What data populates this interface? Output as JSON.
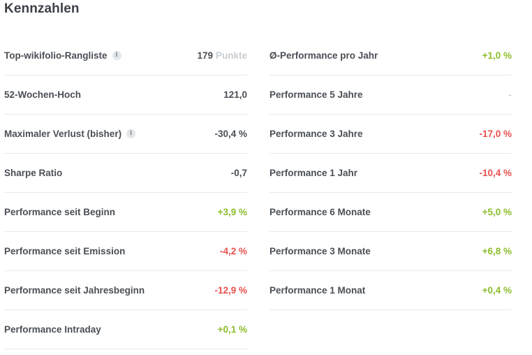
{
  "title": "Kennzahlen",
  "left": [
    {
      "label": "Top-wikifolio-Rangliste",
      "info": true,
      "value": "179",
      "unit": "Punkte",
      "tone": "neutral"
    },
    {
      "label": "52-Wochen-Hoch",
      "info": false,
      "value": "121,0",
      "tone": "neutral"
    },
    {
      "label": "Maximaler Verlust (bisher)",
      "info": true,
      "value": "-30,4 %",
      "tone": "neutral"
    },
    {
      "label": "Sharpe Ratio",
      "info": false,
      "value": "-0,7",
      "tone": "neutral"
    },
    {
      "label": "Performance seit Beginn",
      "info": false,
      "value": "+3,9 %",
      "tone": "pos"
    },
    {
      "label": "Performance seit Emission",
      "info": false,
      "value": "-4,2 %",
      "tone": "neg"
    },
    {
      "label": "Performance seit Jahresbeginn",
      "info": false,
      "value": "-12,9 %",
      "tone": "neg"
    },
    {
      "label": "Performance Intraday",
      "info": false,
      "value": "+0,1 %",
      "tone": "pos"
    }
  ],
  "right": [
    {
      "label": "Ø-Performance pro Jahr",
      "info": false,
      "value": "+1,0 %",
      "tone": "pos"
    },
    {
      "label": "Performance 5 Jahre",
      "info": false,
      "value": "-",
      "tone": "dash"
    },
    {
      "label": "Performance 3 Jahre",
      "info": false,
      "value": "-17,0 %",
      "tone": "neg"
    },
    {
      "label": "Performance 1 Jahr",
      "info": false,
      "value": "-10,4 %",
      "tone": "neg"
    },
    {
      "label": "Performance 6 Monate",
      "info": false,
      "value": "+5,0 %",
      "tone": "pos"
    },
    {
      "label": "Performance 3 Monate",
      "info": false,
      "value": "+6,8 %",
      "tone": "pos"
    },
    {
      "label": "Performance 1 Monat",
      "info": false,
      "value": "+0,4 %",
      "tone": "pos"
    }
  ],
  "info_icon_glyph": "i",
  "colors": {
    "positive": "#8cbd2a",
    "negative": "#e9504d",
    "text": "#4a4f55",
    "divider": "#e6e8ea"
  }
}
